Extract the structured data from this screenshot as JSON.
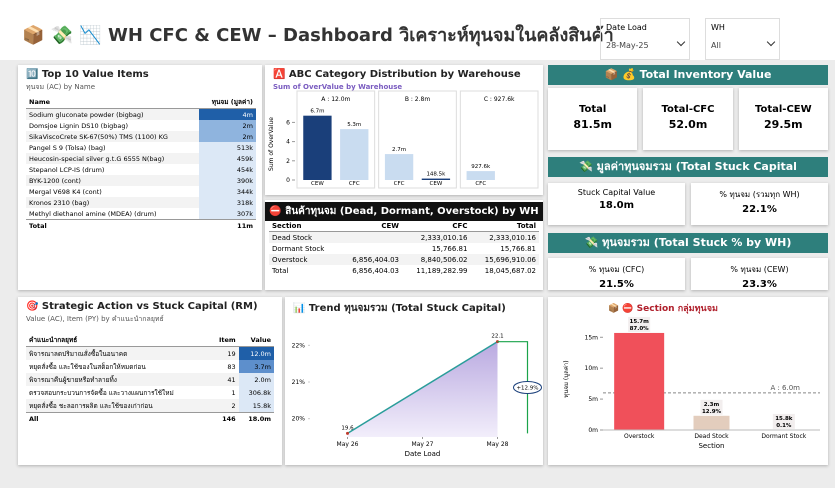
{
  "header": {
    "title": "📦 💸 📉 WH CFC & CEW – Dashboard วิเคราะห์ทุนจมในคลังสินค้า"
  },
  "filters": [
    {
      "label": "Date Load",
      "value": "28-May-25"
    },
    {
      "label": "WH",
      "value": "All"
    }
  ],
  "top_items": {
    "title": "🔟 Top 10 Value Items",
    "subtitle": "ทุนจม (AC) by Name",
    "columns": [
      "Name",
      "ทุนจม (มูลค่า)"
    ],
    "rows": [
      [
        "Sodium gluconate powder (bigbag)",
        "4m"
      ],
      [
        "Domsjoe Lignin DS10 (bigbag)",
        "2m"
      ],
      [
        "SikaViscoCrete SK-67(50%) TMS (1100) KG",
        "2m"
      ],
      [
        "Pangel S 9 (Tolsa) (bag)",
        "513k"
      ],
      [
        "Heucosin-special silver g.t.G 6555 N(bag)",
        "459k"
      ],
      [
        "Stepanol LCP-IS (drum)",
        "454k"
      ],
      [
        "BYK-1200 (cont)",
        "390k"
      ],
      [
        "Mergal V698 K4 (cont)",
        "344k"
      ],
      [
        "Kronos 2310 (bag)",
        "318k"
      ],
      [
        "Methyl diethanol amine (MDEA) (drum)",
        "307k"
      ]
    ],
    "total": [
      "Total",
      "11m"
    ]
  },
  "kpis": [
    {
      "title": "📦 💰 Total Inventory Value",
      "cards": [
        {
          "label": "Total",
          "value": "81.5m"
        },
        {
          "label": "Total-CFC",
          "value": "52.0m"
        },
        {
          "label": "Total-CEW",
          "value": "29.5m"
        }
      ]
    },
    {
      "title": "💸 มูลค่าทุนจมรวม (Total Stuck Capital",
      "cards": [
        {
          "label": "Stuck Capital Value",
          "value": "18.0m"
        },
        {
          "label": "% ทุนจม (รวมทุก WH)",
          "value": "22.1%"
        }
      ]
    },
    {
      "title": "💸 ทุนจมรวม (Total Stuck % by WH)",
      "cards": [
        {
          "label": "% ทุนจม (CFC)",
          "value": "21.5%"
        },
        {
          "label": "% ทุนจม (CEW)",
          "value": "23.3%"
        }
      ]
    }
  ],
  "stuck_table": {
    "title": "⛔ สินค้าทุนจม (Dead, Dormant, Overstock) by WH",
    "columns": [
      "Section",
      "CEW",
      "CFC",
      "Total"
    ],
    "rows": [
      [
        "Dead Stock",
        null,
        "2,333,010.16",
        "2,333,010.16"
      ],
      [
        "Dormant Stock",
        null,
        "15,766.81",
        "15,766.81"
      ],
      [
        "Overstock",
        "6,856,404.03",
        "8,840,506.02",
        "15,696,910.06"
      ],
      [
        "Total",
        "6,856,404.03",
        "11,189,282.99",
        "18,045,687.02"
      ]
    ]
  },
  "strategic_table": {
    "title": "🎯 Strategic Action vs Stuck Capital (RM)",
    "subtitle": "Value (AC), Item (PY) by คำแนะนำกลยุทธ์",
    "columns": [
      "คำแนะนำกลยุทธ์",
      "Item",
      "Value"
    ],
    "rows": [
      [
        "พิจารณาลดปริมาณสั่งซื้อในอนาคต",
        "19",
        "12.0m"
      ],
      [
        "หยุดสั่งซื้อ และใช้ของในสต็อกให้หมดก่อน",
        "83",
        "3.7m"
      ],
      [
        "พิจารณาคืนผู้ขายหรือทำลายทิ้ง",
        "41",
        "2.0m"
      ],
      [
        "ตรวจสอบกระบวนการจัดซื้อ และวางแผนการใช้ใหม่",
        "1",
        "306.8k"
      ],
      [
        "หยุดสั่งซื้อ ชะลอการผลิต และใช้ของเก่าก่อน",
        "2",
        "15.8k"
      ]
    ],
    "total": [
      "All",
      "146",
      "18.0m"
    ]
  },
  "chart_data": [
    {
      "type": "bar",
      "title": "🅰️ ABC Category Distribution by Warehouse",
      "subtitle": "Sum of OverValue by Warehouse",
      "y_label": "Sum of OverValue",
      "color": "#1f3f7a",
      "colors": {
        "CEW": "#1a3f7a",
        "CFC": "#c9dcf0"
      },
      "ylim": [
        0,
        7.5
      ],
      "yticks": [
        0,
        2,
        4,
        6
      ],
      "panels": [
        {
          "label": "A : 12.0m",
          "categories": [
            "CEW",
            "CFC"
          ],
          "values": [
            6.7,
            5.3
          ],
          "value_labels": [
            "6.7m",
            "5.3m"
          ]
        },
        {
          "label": "B : 2.8m",
          "categories": [
            "CFC",
            "CEW"
          ],
          "values": [
            2.7,
            0.1485
          ],
          "value_labels": [
            "2.7m",
            "148.5k"
          ]
        },
        {
          "label": "C : 927.6k",
          "categories": [
            "CFC"
          ],
          "values": [
            0.9276
          ],
          "value_labels": [
            "927.6k"
          ]
        }
      ]
    },
    {
      "type": "line",
      "title": "📊 Trend ทุนจมรวม (Total Stuck Capital)",
      "x_label": "Date Load",
      "color": "#2a9d9a",
      "x": [
        26,
        28
      ],
      "values": [
        19.6,
        22.1
      ],
      "xlim": [
        25.5,
        28.5
      ],
      "xticks": [
        {
          "value": 26,
          "label": "May 26"
        },
        {
          "value": 27,
          "label": "May 27"
        },
        {
          "value": 28,
          "label": "May 28"
        }
      ],
      "ylim": [
        19.5,
        22.5
      ],
      "yticks": [
        {
          "value": 20,
          "label": "20%"
        },
        {
          "value": 21,
          "label": "21%"
        },
        {
          "value": 22,
          "label": "22%"
        }
      ],
      "annotation": "+12.9%"
    },
    {
      "type": "bar",
      "title": "📦 ⛔ Section กลุ่มทุนจม",
      "x_label": "Section",
      "y_label": "ทุนจม (มูลค่า)",
      "categories": [
        "Overstock",
        "Dead Stock",
        "Dormant Stock"
      ],
      "values": [
        15.7,
        2.3,
        0.0158
      ],
      "value_labels": [
        "15.7m",
        "2.3m",
        "15.8k"
      ],
      "share_labels": [
        "87.0%",
        "12.9%",
        "0.1%"
      ],
      "colors": [
        "#f0505a",
        "#e3cdbd",
        "#e3cdbd"
      ],
      "ylim": [
        0,
        16.5
      ],
      "yticks": [
        {
          "value": 0,
          "label": "0m"
        },
        {
          "value": 5,
          "label": "5m"
        },
        {
          "value": 10,
          "label": "10m"
        },
        {
          "value": 15,
          "label": "15m"
        }
      ],
      "reference": {
        "value": 6.0,
        "label": "A : 6.0m"
      }
    }
  ]
}
